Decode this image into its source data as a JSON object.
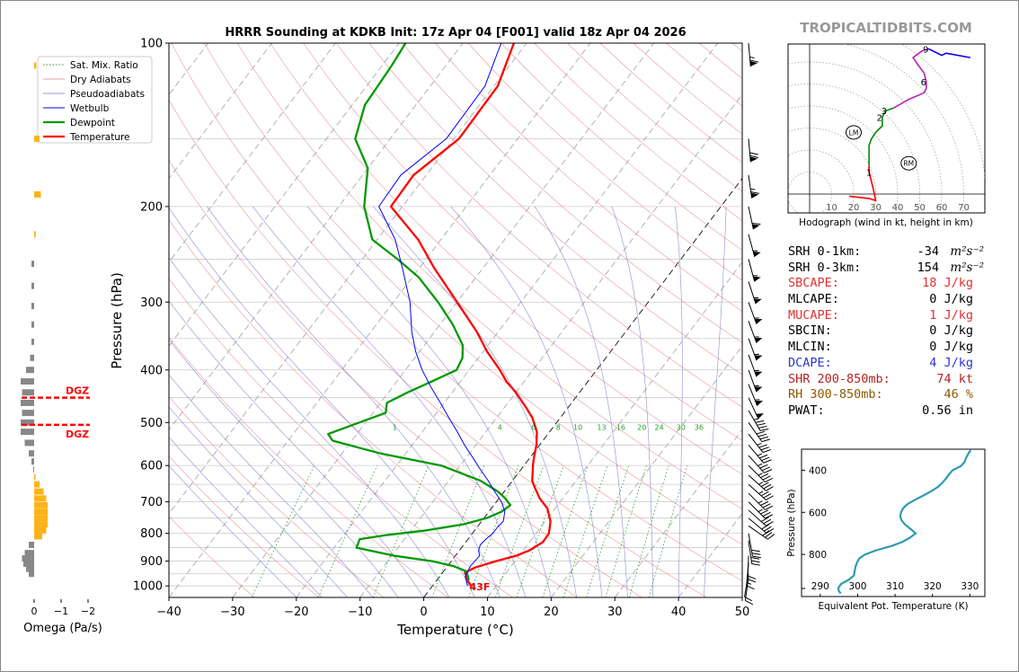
{
  "brand": "TROPICALTIDBITS.COM",
  "chart_data": [
    {
      "type": "line",
      "name": "skew-t",
      "title": "HRRR Sounding at KDKB Init: 17z Apr 04 [F001] valid 18z Apr 04 2026",
      "xlabel": "Temperature (°C)",
      "ylabel": "Pressure (hPa)",
      "xlim": [
        -40,
        50
      ],
      "ylim": [
        1050,
        100
      ],
      "xticks": [
        "−40",
        "−30",
        "−20",
        "−10",
        "0",
        "10",
        "20",
        "30",
        "40",
        "50"
      ],
      "yticks": [
        "100",
        "200",
        "300",
        "400",
        "500",
        "600",
        "700",
        "800",
        "900",
        "1000"
      ],
      "legend": [
        "Sat. Mix. Ratio",
        "Dry Adiabats",
        "Pseudoadiabats",
        "Wetbulb",
        "Dewpoint",
        "Temperature"
      ],
      "mixing_ratio_labels": [
        "1",
        "4",
        "6",
        "8",
        "10",
        "13",
        "16",
        "20",
        "24",
        "30",
        "36"
      ],
      "surface_label": "43F",
      "series": [
        {
          "name": "Temperature",
          "color": "#ff0000",
          "points": [
            [
              1000,
              6.1
            ],
            [
              980,
              5.0
            ],
            [
              960,
              4.2
            ],
            [
              945,
              3.5
            ],
            [
              925,
              4.5
            ],
            [
              900,
              7.0
            ],
            [
              880,
              9.5
            ],
            [
              860,
              11.0
            ],
            [
              830,
              12.1
            ],
            [
              800,
              12.0
            ],
            [
              760,
              10.8
            ],
            [
              720,
              8.8
            ],
            [
              690,
              6.4
            ],
            [
              660,
              4.4
            ],
            [
              640,
              3.1
            ],
            [
              600,
              1.4
            ],
            [
              580,
              0.6
            ],
            [
              550,
              -0.5
            ],
            [
              520,
              -2.0
            ],
            [
              490,
              -4.4
            ],
            [
              470,
              -6.5
            ],
            [
              440,
              -10.0
            ],
            [
              420,
              -12.8
            ],
            [
              400,
              -15.2
            ],
            [
              370,
              -19.4
            ],
            [
              340,
              -23.4
            ],
            [
              300,
              -30.0
            ],
            [
              260,
              -37.6
            ],
            [
              230,
              -43.6
            ],
            [
              200,
              -51.8
            ],
            [
              175,
              -52.0
            ],
            [
              150,
              -49.2
            ],
            [
              120,
              -49.4
            ],
            [
              100,
              -52.0
            ]
          ]
        },
        {
          "name": "Dewpoint",
          "color": "#009900",
          "points": [
            [
              975,
              5.0
            ],
            [
              940,
              3.6
            ],
            [
              920,
              1.0
            ],
            [
              900,
              -3.0
            ],
            [
              880,
              -9.5
            ],
            [
              850,
              -16.5
            ],
            [
              820,
              -17.0
            ],
            [
              805,
              -13.0
            ],
            [
              790,
              -7.5
            ],
            [
              770,
              -2.5
            ],
            [
              750,
              0.4
            ],
            [
              730,
              2.0
            ],
            [
              710,
              2.6
            ],
            [
              690,
              1.0
            ],
            [
              670,
              -1.0
            ],
            [
              640,
              -5.0
            ],
            [
              600,
              -13.0
            ],
            [
              570,
              -24.0
            ],
            [
              540,
              -33.0
            ],
            [
              525,
              -34.5
            ],
            [
              500,
              -31.0
            ],
            [
              480,
              -28.0
            ],
            [
              460,
              -29.0
            ],
            [
              440,
              -27.0
            ],
            [
              420,
              -24.5
            ],
            [
              400,
              -22.0
            ],
            [
              380,
              -22.5
            ],
            [
              360,
              -24.0
            ],
            [
              330,
              -28.0
            ],
            [
              300,
              -33.0
            ],
            [
              270,
              -39.0
            ],
            [
              250,
              -44.5
            ],
            [
              230,
              -50.8
            ],
            [
              200,
              -56.0
            ],
            [
              170,
              -60.0
            ],
            [
              150,
              -65.5
            ],
            [
              130,
              -68.0
            ],
            [
              110,
              -68.5
            ],
            [
              100,
              -69.0
            ]
          ]
        },
        {
          "name": "Wetbulb",
          "color": "#0000ff",
          "points": [
            [
              1000,
              5.5
            ],
            [
              960,
              4.0
            ],
            [
              920,
              3.6
            ],
            [
              880,
              3.8
            ],
            [
              860,
              3.0
            ],
            [
              840,
              2.6
            ],
            [
              820,
              2.8
            ],
            [
              800,
              3.2
            ],
            [
              780,
              3.2
            ],
            [
              760,
              3.4
            ],
            [
              730,
              2.5
            ],
            [
              700,
              0.8
            ],
            [
              670,
              -1.5
            ],
            [
              640,
              -3.8
            ],
            [
              610,
              -6.4
            ],
            [
              580,
              -9.0
            ],
            [
              550,
              -11.8
            ],
            [
              520,
              -14.5
            ],
            [
              490,
              -17.5
            ],
            [
              460,
              -20.6
            ],
            [
              430,
              -24.0
            ],
            [
              400,
              -27.4
            ],
            [
              370,
              -30.6
            ],
            [
              340,
              -33.6
            ],
            [
              300,
              -37.4
            ],
            [
              260,
              -42.6
            ],
            [
              230,
              -47.2
            ],
            [
              200,
              -53.7
            ],
            [
              175,
              -54.0
            ],
            [
              150,
              -51.2
            ],
            [
              120,
              -51.4
            ],
            [
              100,
              -54.0
            ]
          ]
        }
      ]
    },
    {
      "type": "line",
      "name": "hodograph",
      "title": "Hodograph (wind in kt, height in km)",
      "ring_labels": [
        "10",
        "20",
        "30",
        "40",
        "50",
        "60",
        "70"
      ],
      "height_labels": [
        "1",
        "2",
        "3",
        "6",
        "9"
      ],
      "storm_motion_labels": [
        "LM",
        "RM"
      ],
      "points_uv": [
        [
          18,
          -1
        ],
        [
          27,
          -2
        ],
        [
          30,
          -3
        ],
        [
          29,
          2
        ],
        [
          28,
          6
        ],
        [
          27,
          10
        ],
        [
          27,
          13
        ],
        [
          27,
          17
        ],
        [
          27,
          22
        ],
        [
          28,
          25
        ],
        [
          30,
          28
        ],
        [
          32,
          30
        ],
        [
          33,
          31
        ],
        [
          33,
          35
        ],
        [
          34,
          37
        ],
        [
          35,
          38
        ],
        [
          38,
          39
        ],
        [
          45,
          43
        ],
        [
          52,
          46
        ],
        [
          53,
          48
        ],
        [
          53,
          51
        ],
        [
          52,
          55
        ],
        [
          49,
          59
        ],
        [
          47,
          62
        ],
        [
          51,
          65
        ],
        [
          54,
          66
        ],
        [
          60,
          63
        ],
        [
          62,
          64
        ],
        [
          73,
          62
        ]
      ],
      "lm_uv": [
        20,
        28
      ],
      "rm_uv": [
        45,
        14
      ]
    },
    {
      "type": "bar",
      "name": "omega",
      "xlabel": "Omega (Pa/s)",
      "xticks": [
        "0",
        "−1",
        "−2"
      ],
      "dgz_label": "DGZ",
      "dgz_levels_hpa": [
        450,
        505
      ]
    },
    {
      "type": "line",
      "name": "theta-e",
      "xlabel": "Equivalent Pot. Temperature (K)",
      "ylabel": "Pressure (hPa)",
      "xlim": [
        285,
        334
      ],
      "ylim": [
        1000,
        300
      ],
      "xticks": [
        "290",
        "300",
        "310",
        "320",
        "330"
      ],
      "yticks": [
        "400",
        "600",
        "800"
      ],
      "points": [
        [
          985,
          295.5
        ],
        [
          975,
          295.0
        ],
        [
          960,
          294.8
        ],
        [
          940,
          295.6
        ],
        [
          920,
          297.6
        ],
        [
          900,
          299.0
        ],
        [
          880,
          299.2
        ],
        [
          860,
          299.4
        ],
        [
          840,
          299.8
        ],
        [
          820,
          300.4
        ],
        [
          800,
          302.0
        ],
        [
          780,
          305.0
        ],
        [
          760,
          309.0
        ],
        [
          740,
          312.0
        ],
        [
          720,
          314.0
        ],
        [
          700,
          315.5
        ],
        [
          680,
          314.2
        ],
        [
          660,
          312.8
        ],
        [
          640,
          311.8
        ],
        [
          620,
          311.4
        ],
        [
          600,
          311.6
        ],
        [
          580,
          312.2
        ],
        [
          560,
          313.4
        ],
        [
          540,
          315.4
        ],
        [
          520,
          317.6
        ],
        [
          500,
          319.6
        ],
        [
          480,
          321.4
        ],
        [
          460,
          322.6
        ],
        [
          440,
          323.6
        ],
        [
          420,
          324.4
        ],
        [
          400,
          325.4
        ],
        [
          380,
          327.6
        ],
        [
          360,
          328.6
        ],
        [
          340,
          329.0
        ],
        [
          320,
          329.6
        ],
        [
          305,
          330.2
        ]
      ]
    }
  ],
  "stats": [
    {
      "label": "SRH 0-1km:",
      "value": "-34",
      "unit": "m²s⁻²",
      "color": "#000000"
    },
    {
      "label": "SRH 0-3km:",
      "value": "154",
      "unit": "m²s⁻²",
      "color": "#000000"
    },
    {
      "label": "SBCAPE:",
      "value": "18 J/kg",
      "unit": "",
      "color": "#e03030"
    },
    {
      "label": "MLCAPE:",
      "value": "0 J/kg",
      "unit": "",
      "color": "#000000"
    },
    {
      "label": "MUCAPE:",
      "value": "1 J/kg",
      "unit": "",
      "color": "#e03030"
    },
    {
      "label": "SBCIN:",
      "value": "0 J/kg",
      "unit": "",
      "color": "#000000"
    },
    {
      "label": "MLCIN:",
      "value": "0 J/kg",
      "unit": "",
      "color": "#000000"
    },
    {
      "label": "DCAPE:",
      "value": "4 J/kg",
      "unit": "",
      "color": "#2b35d4"
    },
    {
      "label": "SHR 200-850mb:",
      "value": "74 kt",
      "unit": "",
      "color": "#b22222"
    },
    {
      "label": "RH 300-850mb:",
      "value": "46 %",
      "unit": "",
      "color": "#8b5a00"
    },
    {
      "label": "PWAT:",
      "value": "0.56 in",
      "unit": "",
      "color": "#000000"
    }
  ]
}
